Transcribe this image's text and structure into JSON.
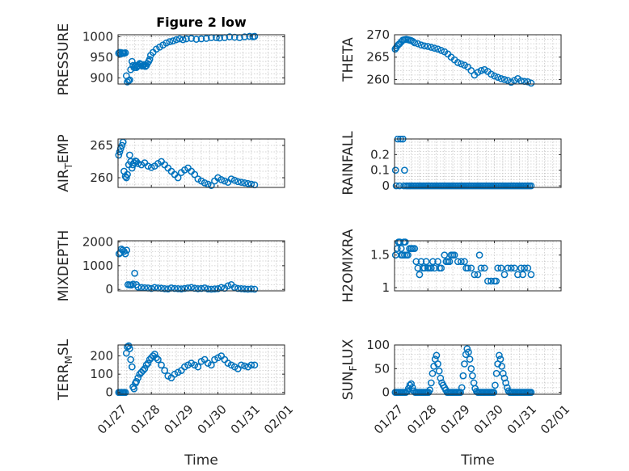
{
  "chart_data": [
    {
      "type": "scatter",
      "title": "Figure 2 low",
      "ylabel": "PRESSURE",
      "xlabel": "",
      "ylim": [
        885,
        1005
      ],
      "yticks": [
        900,
        950,
        1000
      ],
      "ytick_labels": [
        "900",
        "950",
        "1000"
      ],
      "xlim": [
        0,
        5
      ],
      "xticks": [
        0,
        1,
        2,
        3,
        4,
        5
      ],
      "xtick_labels": [],
      "grid": true,
      "x": [
        0.02,
        0.05,
        0.08,
        0.12,
        0.15,
        0.18,
        0.22,
        0.25,
        0.28,
        0.32,
        0.35,
        0.38,
        0.42,
        0.45,
        0.48,
        0.52,
        0.55,
        0.58,
        0.62,
        0.65,
        0.68,
        0.72,
        0.75,
        0.78,
        0.82,
        0.85,
        0.88,
        0.92,
        0.95,
        0.98,
        1.05,
        1.15,
        1.25,
        1.35,
        1.45,
        1.55,
        1.65,
        1.75,
        1.85,
        1.95,
        2.05,
        2.2,
        2.35,
        2.5,
        2.65,
        2.8,
        2.95,
        3.05,
        3.2,
        3.35,
        3.5,
        3.65,
        3.8,
        3.95,
        4.05,
        4.1
      ],
      "y": [
        960,
        962,
        958,
        961,
        960,
        960,
        961,
        905,
        890,
        893,
        895,
        920,
        940,
        930,
        925,
        930,
        925,
        928,
        930,
        935,
        933,
        929,
        930,
        932,
        928,
        930,
        935,
        940,
        945,
        955,
        962,
        970,
        975,
        980,
        985,
        988,
        990,
        993,
        995,
        993,
        995,
        996,
        994,
        995,
        996,
        998,
        998,
        997,
        998,
        1000,
        999,
        998,
        1000,
        1001,
        1000,
        1001
      ]
    },
    {
      "type": "scatter",
      "title": "",
      "ylabel": "THETA",
      "xlabel": "",
      "ylim": [
        259,
        270
      ],
      "yticks": [
        260,
        265,
        270
      ],
      "ytick_labels": [
        "260",
        "265",
        "270"
      ],
      "xlim": [
        0,
        5
      ],
      "xticks": [
        0,
        1,
        2,
        3,
        4,
        5
      ],
      "xtick_labels": [],
      "grid": true,
      "x": [
        0.02,
        0.05,
        0.08,
        0.12,
        0.15,
        0.2,
        0.25,
        0.3,
        0.35,
        0.4,
        0.45,
        0.5,
        0.55,
        0.6,
        0.7,
        0.8,
        0.9,
        1.0,
        1.1,
        1.2,
        1.3,
        1.4,
        1.5,
        1.6,
        1.7,
        1.8,
        1.9,
        2.0,
        2.1,
        2.2,
        2.3,
        2.4,
        2.5,
        2.6,
        2.7,
        2.8,
        2.9,
        3.0,
        3.1,
        3.2,
        3.3,
        3.4,
        3.5,
        3.6,
        3.7,
        3.8,
        3.9,
        4.0,
        4.1
      ],
      "y": [
        266.8,
        267.1,
        267.5,
        267.8,
        268.0,
        268.4,
        268.8,
        268.9,
        269.0,
        268.9,
        268.8,
        268.7,
        268.5,
        268.2,
        268.0,
        267.7,
        267.5,
        267.4,
        267.2,
        267.0,
        266.8,
        266.5,
        266.2,
        265.7,
        265.0,
        264.4,
        263.8,
        263.5,
        263.2,
        262.8,
        262.0,
        261.0,
        261.6,
        262.0,
        262.2,
        261.8,
        261.2,
        260.8,
        260.5,
        260.2,
        260.0,
        259.8,
        259.4,
        259.8,
        260.2,
        259.7,
        259.6,
        259.5,
        259.2
      ]
    },
    {
      "type": "scatter",
      "title": "",
      "ylabel": "AIR_TEMP",
      "ylabel_parts": [
        "AIR",
        "T",
        "EMP"
      ],
      "xlabel": "",
      "ylim": [
        258.5,
        266
      ],
      "yticks": [
        260,
        265
      ],
      "ytick_labels": [
        "260",
        "265"
      ],
      "xlim": [
        0,
        5
      ],
      "xticks": [
        0,
        1,
        2,
        3,
        4,
        5
      ],
      "xtick_labels": [],
      "grid": true,
      "x": [
        0.02,
        0.05,
        0.08,
        0.12,
        0.15,
        0.18,
        0.22,
        0.25,
        0.28,
        0.32,
        0.35,
        0.38,
        0.42,
        0.45,
        0.48,
        0.52,
        0.55,
        0.6,
        0.7,
        0.8,
        0.9,
        1.0,
        1.1,
        1.2,
        1.3,
        1.4,
        1.5,
        1.6,
        1.7,
        1.8,
        1.9,
        2.0,
        2.1,
        2.2,
        2.3,
        2.4,
        2.5,
        2.6,
        2.7,
        2.8,
        2.9,
        3.0,
        3.1,
        3.2,
        3.3,
        3.4,
        3.5,
        3.6,
        3.7,
        3.8,
        3.9,
        4.0,
        4.1
      ],
      "y": [
        263.5,
        264.0,
        264.5,
        265.0,
        265.5,
        261.0,
        260.2,
        260.0,
        260.5,
        262.0,
        263.5,
        262.5,
        261.5,
        262.0,
        262.3,
        262.6,
        262.5,
        262.2,
        262.0,
        262.3,
        261.8,
        261.6,
        261.8,
        262.2,
        262.5,
        262.0,
        261.5,
        261.0,
        260.5,
        260.0,
        260.8,
        261.2,
        261.5,
        261.0,
        260.5,
        259.8,
        259.5,
        259.2,
        259.0,
        258.8,
        259.5,
        260.0,
        259.7,
        259.5,
        259.3,
        259.8,
        259.6,
        259.4,
        259.3,
        259.2,
        259.1,
        259.0,
        258.9
      ]
    },
    {
      "type": "scatter",
      "title": "",
      "ylabel": "RAINFALL",
      "xlabel": "",
      "ylim": [
        -0.01,
        0.3
      ],
      "yticks": [
        0,
        0.1,
        0.2
      ],
      "ytick_labels": [
        "0",
        "0.1",
        "0.2"
      ],
      "xlim": [
        0,
        5
      ],
      "xticks": [
        0,
        1,
        2,
        3,
        4,
        5
      ],
      "xtick_labels": [],
      "grid": true,
      "x": [
        0.03,
        0.1,
        0.18,
        0.25,
        0.3,
        0.35,
        0.4,
        0.45,
        0.5,
        0.55,
        0.6,
        0.65,
        0.7,
        0.75,
        0.8,
        0.85,
        0.9,
        0.95,
        1.0,
        1.05,
        1.1,
        1.15,
        1.2,
        1.25,
        1.3,
        1.35,
        1.4,
        1.45,
        1.5,
        1.55,
        1.6,
        1.65,
        1.7,
        1.75,
        1.8,
        1.85,
        1.9,
        1.95,
        2.0,
        2.05,
        2.1,
        2.15,
        2.2,
        2.25,
        2.3,
        2.35,
        2.4,
        2.45,
        2.5,
        2.55,
        2.6,
        2.65,
        2.7,
        2.75,
        2.8,
        2.85,
        2.9,
        2.95,
        3.0,
        3.05,
        3.1,
        3.15,
        3.2,
        3.25,
        3.3,
        3.35,
        3.4,
        3.45,
        3.5,
        3.55,
        3.6,
        3.65,
        3.7,
        3.75,
        3.8,
        3.85,
        3.9,
        3.95,
        4.0,
        4.05,
        4.1,
        0.05,
        0.15,
        0.28
      ],
      "y": [
        0.1,
        0.3,
        0.3,
        0.3,
        0.1,
        0,
        0,
        0,
        0,
        0,
        0,
        0,
        0,
        0,
        0,
        0,
        0,
        0,
        0,
        0,
        0,
        0,
        0,
        0,
        0,
        0,
        0,
        0,
        0,
        0,
        0,
        0,
        0,
        0,
        0,
        0,
        0,
        0,
        0,
        0,
        0,
        0,
        0,
        0,
        0,
        0,
        0,
        0,
        0,
        0,
        0,
        0,
        0,
        0,
        0,
        0,
        0,
        0,
        0,
        0,
        0,
        0,
        0,
        0,
        0,
        0,
        0,
        0,
        0,
        0,
        0,
        0,
        0,
        0,
        0,
        0,
        0,
        0,
        0,
        0,
        0,
        0,
        0,
        0
      ]
    },
    {
      "type": "scatter",
      "title": "",
      "ylabel": "MIXDEPTH",
      "xlabel": "",
      "ylim": [
        -60,
        2050
      ],
      "yticks": [
        0,
        1000,
        2000
      ],
      "ytick_labels": [
        "0",
        "1000",
        "2000"
      ],
      "xlim": [
        0,
        5
      ],
      "xticks": [
        0,
        1,
        2,
        3,
        4,
        5
      ],
      "xtick_labels": [],
      "grid": true,
      "x": [
        0.03,
        0.07,
        0.1,
        0.14,
        0.18,
        0.22,
        0.26,
        0.3,
        0.35,
        0.4,
        0.45,
        0.5,
        0.55,
        0.6,
        0.7,
        0.8,
        0.9,
        1.0,
        1.1,
        1.2,
        1.3,
        1.4,
        1.5,
        1.6,
        1.7,
        1.8,
        1.9,
        2.0,
        2.1,
        2.2,
        2.3,
        2.4,
        2.5,
        2.6,
        2.7,
        2.8,
        2.9,
        3.0,
        3.1,
        3.2,
        3.3,
        3.4,
        3.5,
        3.6,
        3.7,
        3.8,
        3.9,
        4.0,
        4.1
      ],
      "y": [
        1500,
        1550,
        1700,
        1650,
        1600,
        1500,
        1650,
        200,
        190,
        180,
        220,
        680,
        200,
        100,
        80,
        70,
        60,
        40,
        80,
        60,
        50,
        30,
        20,
        60,
        40,
        30,
        20,
        40,
        60,
        80,
        50,
        30,
        40,
        60,
        20,
        10,
        20,
        30,
        80,
        50,
        150,
        200,
        80,
        40,
        30,
        20,
        10,
        20,
        10
      ]
    },
    {
      "type": "scatter",
      "title": "",
      "ylabel": "H2OMIXRA",
      "xlabel": "",
      "ylim": [
        0.95,
        1.72
      ],
      "yticks": [
        1,
        1.5
      ],
      "ytick_labels": [
        "1",
        "1.5"
      ],
      "xlim": [
        0,
        5
      ],
      "xticks": [
        0,
        1,
        2,
        3,
        4,
        5
      ],
      "xtick_labels": [],
      "grid": true,
      "x": [
        0.03,
        0.08,
        0.12,
        0.16,
        0.2,
        0.24,
        0.28,
        0.32,
        0.36,
        0.4,
        0.45,
        0.5,
        0.55,
        0.6,
        0.65,
        0.7,
        0.75,
        0.8,
        0.85,
        0.9,
        0.95,
        1.0,
        1.05,
        1.1,
        1.15,
        1.2,
        1.3,
        1.4,
        1.5,
        1.55,
        1.6,
        1.65,
        1.7,
        1.75,
        1.8,
        1.9,
        2.0,
        2.1,
        2.2,
        2.3,
        2.4,
        2.5,
        2.6,
        2.7,
        2.8,
        2.9,
        3.0,
        3.05,
        3.1,
        3.2,
        3.3,
        3.4,
        3.5,
        3.6,
        3.7,
        3.8,
        3.9,
        4.0,
        4.1,
        0.2,
        0.3,
        0.5,
        1.35,
        2.15,
        2.55,
        3.85
      ],
      "y": [
        1.5,
        1.6,
        1.7,
        1.7,
        1.6,
        1.5,
        1.7,
        1.7,
        1.5,
        1.5,
        1.6,
        1.6,
        1.6,
        1.6,
        1.4,
        1.3,
        1.2,
        1.4,
        1.3,
        1.3,
        1.4,
        1.3,
        1.3,
        1.3,
        1.4,
        1.3,
        1.4,
        1.3,
        1.5,
        1.4,
        1.4,
        1.4,
        1.5,
        1.5,
        1.5,
        1.4,
        1.4,
        1.4,
        1.3,
        1.3,
        1.2,
        1.2,
        1.3,
        1.3,
        1.1,
        1.1,
        1.1,
        1.1,
        1.3,
        1.3,
        1.2,
        1.3,
        1.3,
        1.3,
        1.2,
        1.3,
        1.3,
        1.3,
        1.2,
        1.5,
        1.5,
        1.6,
        1.3,
        1.3,
        1.5,
        1.2
      ]
    },
    {
      "type": "scatter",
      "title": "",
      "ylabel": "TERR_MSL",
      "ylabel_parts": [
        "TERR",
        "M",
        "SL"
      ],
      "xlabel": "Time",
      "ylim": [
        -10,
        260
      ],
      "yticks": [
        0,
        100,
        200
      ],
      "ytick_labels": [
        "0",
        "100",
        "200"
      ],
      "xlim": [
        0,
        5
      ],
      "xticks": [
        0,
        1,
        2,
        3,
        4,
        5
      ],
      "xtick_labels": [
        "01/27",
        "01/28",
        "01/29",
        "01/30",
        "01/31",
        "02/01"
      ],
      "grid": true,
      "x": [
        0.02,
        0.05,
        0.08,
        0.12,
        0.15,
        0.18,
        0.22,
        0.25,
        0.28,
        0.32,
        0.35,
        0.38,
        0.42,
        0.45,
        0.48,
        0.52,
        0.55,
        0.6,
        0.65,
        0.7,
        0.75,
        0.8,
        0.85,
        0.9,
        0.95,
        1.0,
        1.05,
        1.1,
        1.15,
        1.2,
        1.3,
        1.4,
        1.5,
        1.6,
        1.7,
        1.8,
        1.9,
        2.0,
        2.1,
        2.2,
        2.3,
        2.4,
        2.5,
        2.6,
        2.7,
        2.8,
        2.9,
        3.0,
        3.1,
        3.2,
        3.3,
        3.4,
        3.5,
        3.6,
        3.7,
        3.8,
        3.9,
        4.0,
        4.1
      ],
      "y": [
        0,
        0,
        0,
        0,
        0,
        0,
        0,
        215,
        250,
        255,
        240,
        180,
        140,
        30,
        20,
        50,
        60,
        80,
        100,
        110,
        120,
        130,
        150,
        160,
        180,
        190,
        200,
        210,
        190,
        180,
        150,
        120,
        90,
        80,
        100,
        110,
        120,
        140,
        150,
        160,
        150,
        140,
        170,
        180,
        160,
        150,
        180,
        190,
        200,
        180,
        160,
        150,
        140,
        130,
        150,
        145,
        140,
        150,
        150
      ]
    },
    {
      "type": "scatter",
      "title": "",
      "ylabel": "SUN_FLUX",
      "ylabel_parts": [
        "SUN",
        "F",
        "LUX"
      ],
      "xlabel": "Time",
      "ylim": [
        -4,
        100
      ],
      "yticks": [
        0,
        50,
        100
      ],
      "ytick_labels": [
        "0",
        "50",
        "100"
      ],
      "xlim": [
        0,
        5
      ],
      "xticks": [
        0,
        1,
        2,
        3,
        4,
        5
      ],
      "xtick_labels": [
        "01/27",
        "01/28",
        "01/29",
        "01/30",
        "01/31",
        "02/01"
      ],
      "grid": true,
      "x": [
        0.02,
        0.06,
        0.1,
        0.14,
        0.18,
        0.22,
        0.26,
        0.3,
        0.34,
        0.38,
        0.42,
        0.46,
        0.5,
        0.54,
        0.58,
        0.62,
        0.66,
        0.7,
        0.74,
        0.78,
        0.82,
        0.86,
        0.9,
        0.94,
        0.98,
        1.02,
        1.06,
        1.1,
        1.14,
        1.18,
        1.22,
        1.26,
        1.3,
        1.34,
        1.38,
        1.42,
        1.46,
        1.5,
        1.54,
        1.58,
        1.62,
        1.66,
        1.7,
        1.74,
        1.78,
        1.82,
        1.86,
        1.9,
        1.94,
        1.98,
        2.02,
        2.06,
        2.1,
        2.14,
        2.18,
        2.22,
        2.26,
        2.3,
        2.34,
        2.38,
        2.42,
        2.46,
        2.5,
        2.54,
        2.58,
        2.62,
        2.66,
        2.7,
        2.74,
        2.78,
        2.82,
        2.86,
        2.9,
        2.94,
        2.98,
        3.02,
        3.06,
        3.1,
        3.14,
        3.18,
        3.22,
        3.26,
        3.3,
        3.34,
        3.38,
        3.42,
        3.46,
        3.5,
        3.54,
        3.58,
        3.62,
        3.66,
        3.7,
        3.74,
        3.78,
        3.82,
        3.86,
        3.9,
        3.94,
        3.98,
        4.02,
        4.06,
        4.1
      ],
      "y": [
        0,
        0,
        0,
        0,
        0,
        0,
        0,
        0,
        0,
        2,
        8,
        15,
        18,
        10,
        3,
        0,
        0,
        0,
        0,
        0,
        0,
        0,
        0,
        0,
        0,
        0,
        5,
        20,
        40,
        55,
        70,
        78,
        60,
        45,
        30,
        20,
        15,
        10,
        5,
        0,
        0,
        0,
        0,
        0,
        0,
        0,
        0,
        0,
        0,
        0,
        10,
        35,
        60,
        80,
        92,
        85,
        70,
        50,
        35,
        20,
        8,
        2,
        0,
        0,
        0,
        0,
        0,
        0,
        0,
        0,
        0,
        0,
        0,
        0,
        0,
        15,
        40,
        60,
        78,
        70,
        55,
        40,
        30,
        20,
        10,
        3,
        0,
        0,
        0,
        0,
        0,
        0,
        0,
        0,
        0,
        0,
        0,
        0,
        0,
        0,
        0,
        0,
        0
      ]
    }
  ]
}
